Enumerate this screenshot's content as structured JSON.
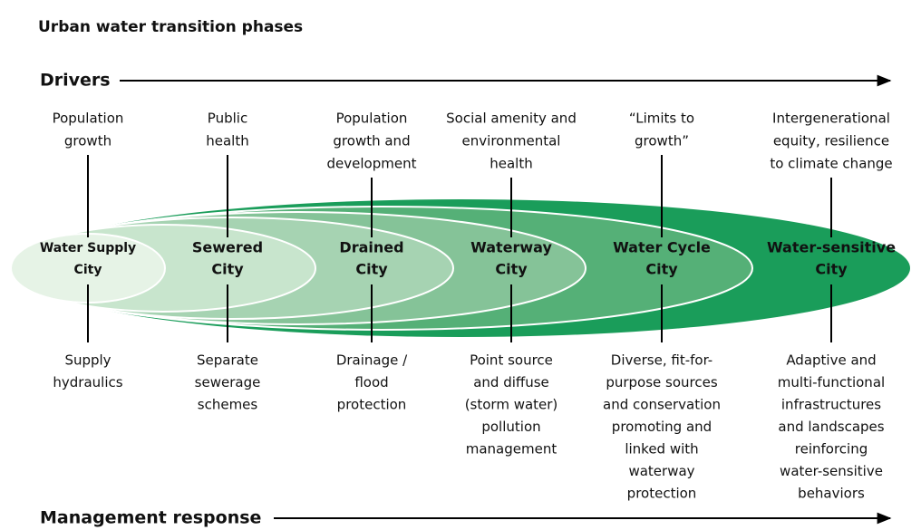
{
  "title": "Urban water transition phases",
  "drivers_label": "Drivers",
  "response_label": "Management response",
  "phases": [
    {
      "name": [
        "Water Supply",
        "City"
      ],
      "driver": [
        "Population",
        "growth"
      ],
      "response": [
        "Supply",
        "hydraulics"
      ]
    },
    {
      "name": [
        "Sewered",
        "City"
      ],
      "driver": [
        "Public",
        "health"
      ],
      "response": [
        "Separate",
        "sewerage",
        "schemes"
      ]
    },
    {
      "name": [
        "Drained",
        "City"
      ],
      "driver": [
        "Population",
        "growth and",
        "development"
      ],
      "response": [
        "Drainage /",
        "flood",
        "protection"
      ]
    },
    {
      "name": [
        "Waterway",
        "City"
      ],
      "driver": [
        "Social amenity and",
        "environmental",
        "health"
      ],
      "response": [
        "Point source",
        "and diffuse",
        "(storm water)",
        "pollution",
        "management"
      ]
    },
    {
      "name": [
        "Water Cycle",
        "City"
      ],
      "driver": [
        "“Limits to",
        "growth”"
      ],
      "response": [
        "Diverse, fit-for-",
        "purpose sources",
        "and conservation",
        "promoting and",
        "linked with",
        "waterway",
        "protection"
      ]
    },
    {
      "name": [
        "Water-sensitive",
        "City"
      ],
      "driver": [
        "Intergenerational",
        "equity, resilience",
        "to climate change"
      ],
      "response": [
        "Adaptive and",
        "multi-functional",
        "infrastructures",
        "and landscapes",
        "reinforcing",
        "water-sensitive",
        "behaviors"
      ]
    }
  ]
}
